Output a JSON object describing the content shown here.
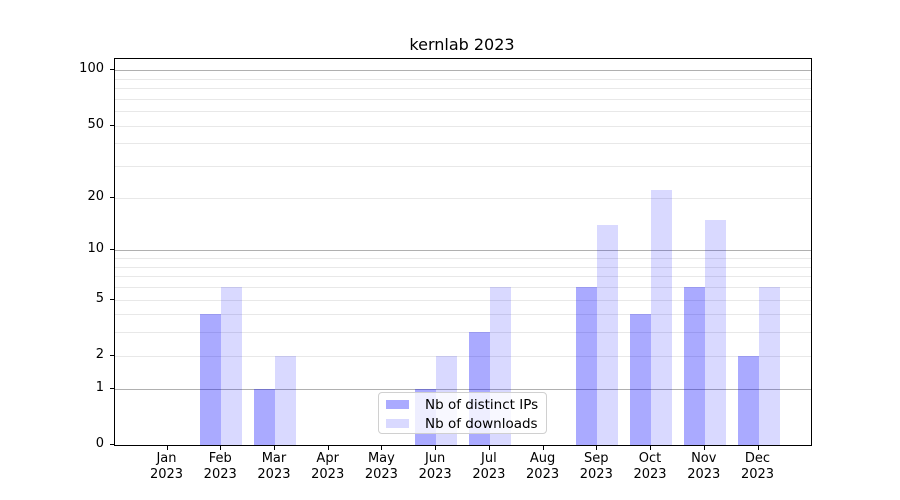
{
  "title": "kernlab 2023",
  "legend": {
    "items": [
      {
        "label": "Nb of distinct IPs",
        "color": "rgba(0,0,255,0.333)"
      },
      {
        "label": "Nb of downloads",
        "color": "rgba(0,0,255,0.149)"
      }
    ]
  },
  "colors": {
    "bar_distinct_ips": "rgba(0,0,255,0.333)",
    "bar_downloads": "rgba(0,0,255,0.149)",
    "grid_major": "#b0b0b0",
    "grid_minor": "#e8e8e8",
    "axis": "#000000"
  },
  "chart_data": {
    "type": "bar",
    "title": "kernlab 2023",
    "categories": [
      "Jan 2023",
      "Feb 2023",
      "Mar 2023",
      "Apr 2023",
      "May 2023",
      "Jun 2023",
      "Jul 2023",
      "Aug 2023",
      "Sep 2023",
      "Oct 2023",
      "Nov 2023",
      "Dec 2023"
    ],
    "series": [
      {
        "name": "Nb of distinct IPs",
        "color": "rgba(0,0,255,0.333)",
        "values": [
          0,
          4,
          1,
          0,
          0,
          1,
          3,
          0,
          6,
          4,
          6,
          2
        ]
      },
      {
        "name": "Nb of downloads",
        "color": "rgba(0,0,255,0.149)",
        "values": [
          0,
          6,
          2,
          0,
          0,
          2,
          6,
          0,
          14,
          22,
          15,
          6
        ]
      }
    ],
    "xlabel": "",
    "ylabel": "",
    "y_scale": "log1p",
    "ylim": [
      0,
      115
    ],
    "y_ticks": [
      0,
      1,
      2,
      5,
      10,
      20,
      50,
      100
    ],
    "y_major_gridlines": [
      1,
      10,
      100
    ],
    "y_minor_gridlines": [
      2,
      3,
      4,
      5,
      6,
      7,
      8,
      9,
      20,
      30,
      40,
      50,
      60,
      70,
      80,
      90
    ],
    "grid": true,
    "legend_position": "lower center (inside plot)"
  }
}
